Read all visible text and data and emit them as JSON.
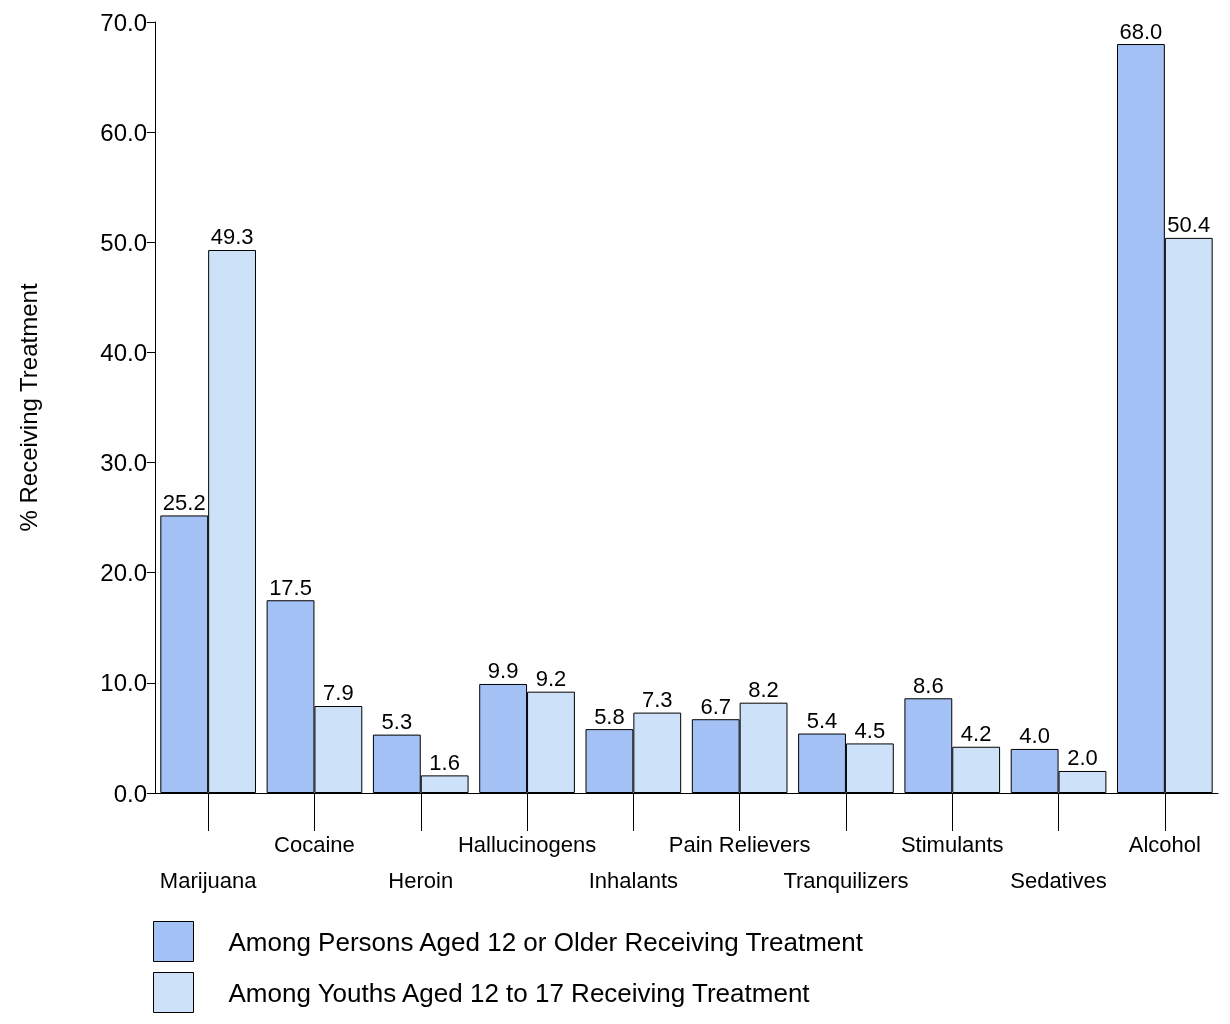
{
  "chart_data": {
    "type": "bar",
    "ylabel": "% Receiving Treatment",
    "categories": [
      "Marijuana",
      "Cocaine",
      "Heroin",
      "Hallucinogens",
      "Inhalants",
      "Pain Relievers",
      "Tranquilizers",
      "Stimulants",
      "Sedatives",
      "Alcohol"
    ],
    "series": [
      {
        "name": "Among Persons Aged 12 or Older Receiving Treatment",
        "color": "#a3c1f5",
        "values": [
          25.2,
          17.5,
          5.3,
          9.9,
          5.8,
          6.7,
          5.4,
          8.6,
          4.0,
          68.0
        ],
        "value_labels": [
          "25.2",
          "17.5",
          "5.3",
          "9.9",
          "5.8",
          "6.7",
          "5.4",
          "8.6",
          "4.0",
          "68.0"
        ]
      },
      {
        "name": "Among Youths Aged 12 to 17 Receiving Treatment",
        "color": "#cde1f8",
        "values": [
          49.3,
          7.9,
          1.6,
          9.2,
          7.3,
          8.2,
          4.5,
          4.2,
          2.0,
          50.4
        ],
        "value_labels": [
          "49.3",
          "7.9",
          "1.6",
          "9.2",
          "7.3",
          "8.2",
          "4.5",
          "4.2",
          "2.0",
          "50.4"
        ]
      }
    ],
    "ylim": [
      0,
      70
    ],
    "yticks": [
      {
        "value": 0,
        "label": "0.0"
      },
      {
        "value": 10,
        "label": "10.0"
      },
      {
        "value": 20,
        "label": "20.0"
      },
      {
        "value": 30,
        "label": "30.0"
      },
      {
        "value": 40,
        "label": "40.0"
      },
      {
        "value": 50,
        "label": "50.0"
      },
      {
        "value": 60,
        "label": "60.0"
      },
      {
        "value": 70,
        "label": "70.0"
      }
    ],
    "grid": false,
    "legend": "bottom left"
  }
}
